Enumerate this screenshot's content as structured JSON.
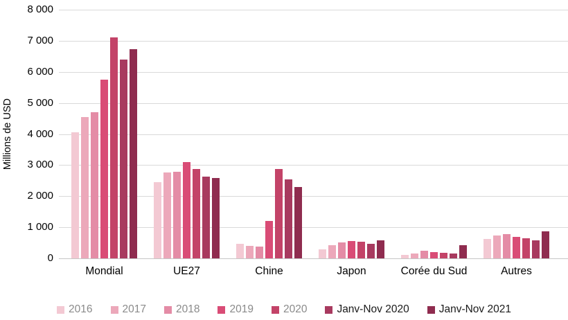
{
  "chart_data": {
    "type": "bar",
    "title": "",
    "ylabel": "Millions de USD",
    "ylim": [
      0,
      8000
    ],
    "ytick_step": 1000,
    "ytick_labels": [
      "8 000",
      "7 000",
      "6 000",
      "5 000",
      "4 000",
      "3 000",
      "2 000",
      "1 000",
      "0"
    ],
    "grid": "horizontal",
    "legend_position": "bottom",
    "categories": [
      "Mondial",
      "UE27",
      "Chine",
      "Japon",
      "Corée du Sud",
      "Autres"
    ],
    "series": [
      {
        "name": "2016",
        "color": "#F3C9D3",
        "legend_text_color": "#8a8a8a",
        "values": [
          4050,
          2450,
          460,
          290,
          110,
          630
        ]
      },
      {
        "name": "2017",
        "color": "#ECA8BA",
        "legend_text_color": "#8a8a8a",
        "values": [
          4550,
          2760,
          410,
          430,
          160,
          730
        ]
      },
      {
        "name": "2018",
        "color": "#E48CA6",
        "legend_text_color": "#8a8a8a",
        "values": [
          4700,
          2790,
          370,
          520,
          250,
          770
        ]
      },
      {
        "name": "2019",
        "color": "#D94C76",
        "legend_text_color": "#8a8a8a",
        "values": [
          5750,
          3090,
          1200,
          560,
          200,
          690
        ]
      },
      {
        "name": "2020",
        "color": "#C34368",
        "legend_text_color": "#8a8a8a",
        "values": [
          7120,
          2880,
          2870,
          540,
          180,
          640
        ]
      },
      {
        "name": "Janv-Nov 2020",
        "color": "#A83A5F",
        "legend_text_color": "#1a1a1a",
        "values": [
          6400,
          2640,
          2530,
          460,
          150,
          580
        ]
      },
      {
        "name": "Janv-Nov 2021",
        "color": "#8F2C4F",
        "legend_text_color": "#1a1a1a",
        "values": [
          6720,
          2590,
          2300,
          580,
          420,
          860
        ]
      }
    ]
  },
  "colors": {
    "background": "#ffffff",
    "gridline": "#d9d9d9",
    "axis_line": "#c6c6c6",
    "tick_text": "#000000",
    "category_text": "#000000"
  }
}
